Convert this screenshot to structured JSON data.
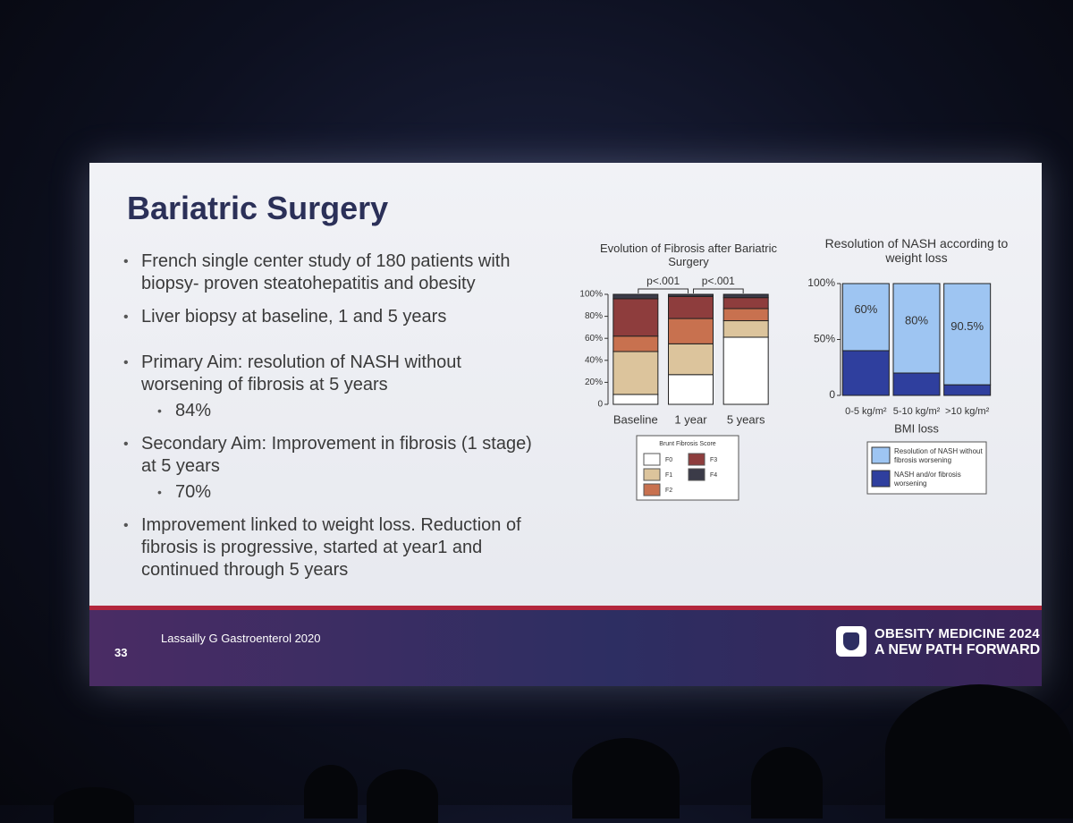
{
  "slide": {
    "title": "Bariatric Surgery",
    "bullets": [
      {
        "text": "French single center study of 180 patients with biopsy- proven steatohepatitis and obesity"
      },
      {
        "text": "Liver biopsy at baseline, 1 and 5 years"
      },
      {
        "text": "Primary Aim: resolution of NASH without worsening of fibrosis at 5 years",
        "sub": [
          "84%"
        ]
      },
      {
        "text": "Secondary Aim:  Improvement in fibrosis (1 stage) at 5 years",
        "sub": [
          "70%"
        ]
      },
      {
        "text": "Improvement linked to weight loss. Reduction of fibrosis is progressive, started at year1 and continued through 5 years"
      }
    ],
    "footer": {
      "page_number": "33",
      "citation": "Lassailly G Gastroenterol 2020",
      "brand_line1": "OBESITY MEDICINE 2024",
      "brand_line2": "A NEW PATH FORWARD"
    }
  },
  "chart_data": [
    {
      "type": "bar",
      "title": "Evolution of Fibrosis after Bariatric Surgery",
      "categories": [
        "Baseline",
        "1 year",
        "5 years"
      ],
      "ylim": [
        0,
        100
      ],
      "yticks": [
        0,
        {
          "value": 20,
          "label": "20%"
        },
        {
          "value": 40,
          "label": "40%"
        },
        {
          "value": 60,
          "label": "60%"
        },
        {
          "value": 80,
          "label": "80%"
        },
        {
          "value": 100,
          "label": "100%"
        }
      ],
      "stacked": true,
      "legend_title": "Brunt Fibrosis Score",
      "annotations": [
        "p<.001",
        "p<.001"
      ],
      "series": [
        {
          "name": "F0",
          "color": "#ffffff",
          "values": [
            9,
            27,
            61
          ]
        },
        {
          "name": "F1",
          "color": "#dcc49c",
          "values": [
            39,
            28,
            15
          ]
        },
        {
          "name": "F2",
          "color": "#c8714f",
          "values": [
            14,
            23,
            11
          ]
        },
        {
          "name": "F3",
          "color": "#8e3d3d",
          "values": [
            34,
            20,
            10
          ]
        },
        {
          "name": "F4",
          "color": "#3b3b48",
          "values": [
            4,
            2,
            3
          ]
        }
      ]
    },
    {
      "type": "bar",
      "title": "Resolution of NASH according to weight loss",
      "categories": [
        "0-5 kg/m²",
        "5-10 kg/m²",
        ">10 kg/m²"
      ],
      "x_label": "BMI loss",
      "ylim": [
        0,
        100
      ],
      "yticks": [
        0,
        {
          "value": 50,
          "label": "50%"
        },
        {
          "value": 100,
          "label": "100%"
        }
      ],
      "stacked": true,
      "series": [
        {
          "name": "NASH and/or fibrosis worsening",
          "color": "#2f3f9e",
          "values": [
            40,
            20,
            9.5
          ]
        },
        {
          "name": "Resolution of NASH without fibrosis worsening",
          "color": "#9ec5f2",
          "values": [
            60,
            80,
            90.5
          ],
          "value_labels": [
            "60%",
            "80%",
            "90.5%"
          ]
        }
      ]
    }
  ]
}
